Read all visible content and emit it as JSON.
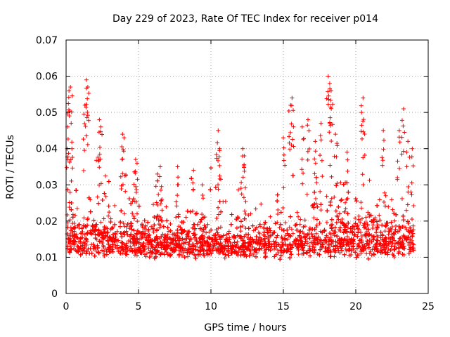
{
  "chart_data": {
    "type": "scatter",
    "title": "Day 229 of 2023, Rate Of TEC Index for receiver p014",
    "xlabel": "GPS time / hours",
    "ylabel": "ROTI / TECUs",
    "xlim": [
      0,
      25
    ],
    "ylim": [
      0,
      0.07
    ],
    "x_ticks": [
      0,
      5,
      10,
      15,
      20,
      25
    ],
    "x_tick_labels": [
      "0",
      "5",
      "10",
      "15",
      "20",
      "25"
    ],
    "y_ticks": [
      0,
      0.01,
      0.02,
      0.03,
      0.04,
      0.05,
      0.06,
      0.07
    ],
    "y_tick_labels": [
      "0",
      "0.01",
      "0.02",
      "0.03",
      "0.04",
      "0.05",
      "0.06",
      "0.07"
    ],
    "grid": true,
    "marker": "+",
    "color": "#ff0000",
    "data_x_range": [
      0,
      24
    ],
    "series": [
      {
        "x": [
          0.1,
          0.2,
          0.3,
          0.4,
          1.3,
          1.4,
          1.5,
          2.3,
          2.4,
          3.9,
          4.0,
          4.8,
          4.9,
          6.3,
          6.5,
          7.7,
          8.8,
          9.4,
          10.5,
          10.6,
          12.2,
          12.3,
          15.0,
          15.5,
          15.6,
          16.3,
          16.7,
          17.2,
          17.6,
          18.1,
          18.2,
          18.3,
          18.6,
          19.4,
          20.4,
          20.5,
          21.9,
          23.0,
          23.3,
          23.6,
          23.9
        ],
        "y": [
          0.046,
          0.056,
          0.057,
          0.04,
          0.052,
          0.059,
          0.057,
          0.048,
          0.046,
          0.044,
          0.043,
          0.037,
          0.036,
          0.033,
          0.035,
          0.035,
          0.034,
          0.03,
          0.045,
          0.04,
          0.04,
          0.038,
          0.043,
          0.052,
          0.054,
          0.046,
          0.048,
          0.042,
          0.047,
          0.06,
          0.058,
          0.056,
          0.044,
          0.039,
          0.05,
          0.054,
          0.045,
          0.045,
          0.051,
          0.042,
          0.04
        ]
      }
    ]
  }
}
